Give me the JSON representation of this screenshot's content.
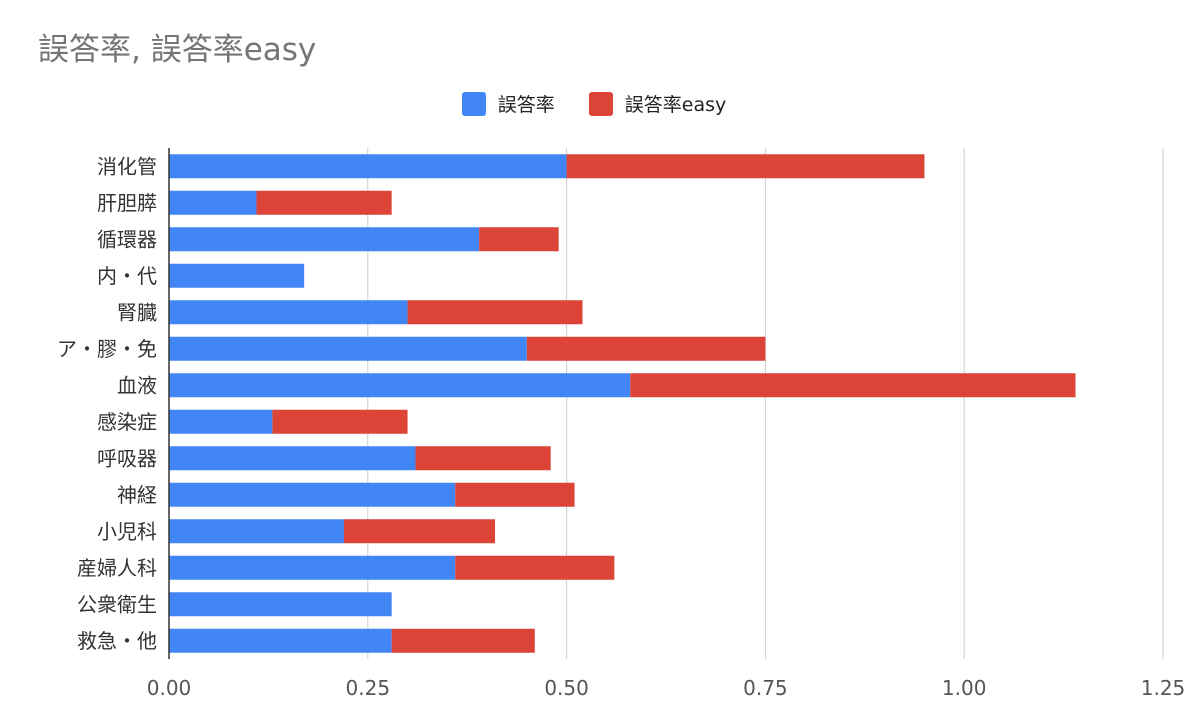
{
  "title": "誤答率, 誤答率easy",
  "chart_data": {
    "type": "bar",
    "orientation": "horizontal",
    "stacked": true,
    "title": "誤答率, 誤答率easy",
    "categories": [
      "消化管",
      "肝胆膵",
      "循環器",
      "内・代",
      "腎臓",
      "ア・膠・免",
      "血液",
      "感染症",
      "呼吸器",
      "神経",
      "小児科",
      "産婦人科",
      "公衆衛生",
      "救急・他"
    ],
    "series": [
      {
        "name": "誤答率",
        "color": "#4285F4",
        "values": [
          0.5,
          0.11,
          0.39,
          0.17,
          0.3,
          0.45,
          0.58,
          0.13,
          0.31,
          0.36,
          0.22,
          0.36,
          0.28,
          0.28
        ]
      },
      {
        "name": "誤答率easy",
        "color": "#DB4437",
        "values": [
          0.45,
          0.17,
          0.1,
          0.0,
          0.22,
          0.3,
          0.56,
          0.17,
          0.17,
          0.15,
          0.19,
          0.2,
          0.0,
          0.18
        ]
      }
    ],
    "x_ticks": [
      "0.00",
      "0.25",
      "0.50",
      "0.75",
      "1.00",
      "1.25"
    ],
    "xlim": [
      0,
      1.25
    ],
    "grid": true,
    "legend_position": "top"
  }
}
